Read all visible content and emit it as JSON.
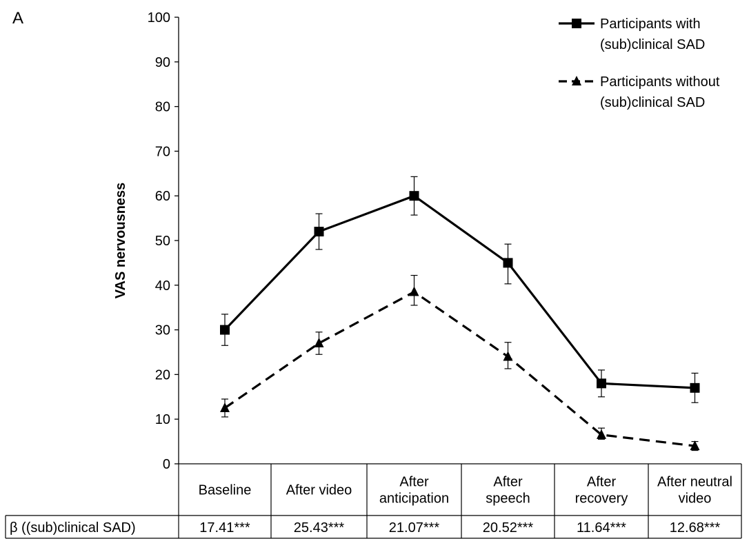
{
  "panel_label": "A",
  "chart_data": {
    "type": "line",
    "title": "",
    "xlabel": "",
    "ylabel": "VAS nervousness",
    "ylim": [
      0,
      100
    ],
    "yticks": [
      0,
      10,
      20,
      30,
      40,
      50,
      60,
      70,
      80,
      90,
      100
    ],
    "grid": false,
    "legend_position": "top-right",
    "categories": [
      [
        "Baseline"
      ],
      [
        "After video"
      ],
      [
        "After",
        "anticipation"
      ],
      [
        "After",
        "speech"
      ],
      [
        "After",
        "recovery"
      ],
      [
        "After neutral",
        "video"
      ]
    ],
    "series": [
      {
        "name": [
          "Participants with",
          "(sub)clinical SAD"
        ],
        "marker": "square",
        "line_style": "solid",
        "color": "#000000",
        "values": [
          30,
          52,
          60,
          45,
          18,
          17
        ],
        "error_upper": [
          33.5,
          56,
          64.3,
          49.2,
          21,
          20.3
        ],
        "error_lower": [
          26.5,
          48,
          55.7,
          40.3,
          15,
          13.7
        ]
      },
      {
        "name": [
          "Participants without",
          "(sub)clinical SAD"
        ],
        "marker": "triangle",
        "line_style": "dashed",
        "color": "#000000",
        "values": [
          12.5,
          27,
          38.5,
          24,
          6.5,
          4
        ],
        "error_upper": [
          14.5,
          29.5,
          42.2,
          27.2,
          8,
          5
        ],
        "error_lower": [
          10.5,
          24.5,
          35.5,
          21.3,
          5.5,
          3
        ]
      }
    ],
    "table": {
      "row_label": "β  ((sub)clinical SAD)",
      "values": [
        "17.41***",
        "25.43***",
        "21.07***",
        "20.52***",
        "11.64***",
        "12.68***"
      ]
    }
  }
}
